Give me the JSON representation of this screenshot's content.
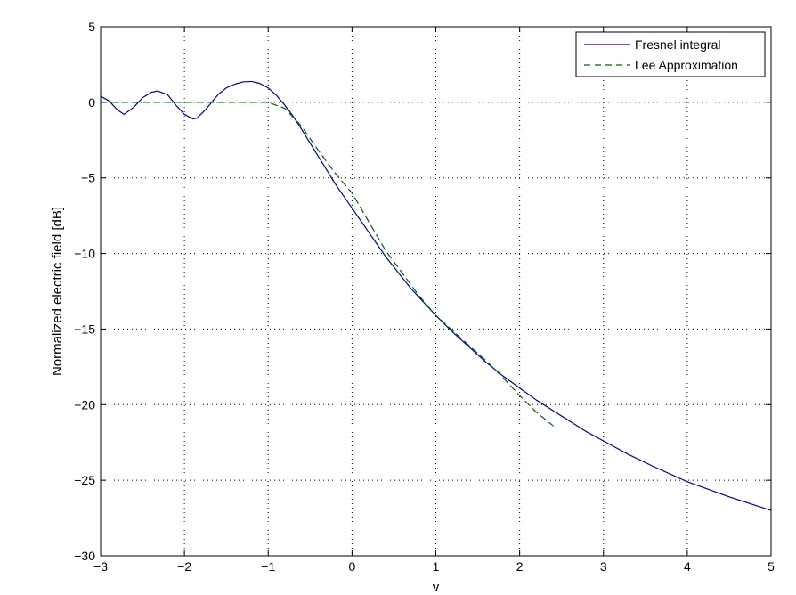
{
  "chart_data": {
    "type": "line",
    "title": "",
    "xlabel": "v",
    "ylabel": "Normalized electric field [dB]",
    "xlim": [
      -3,
      5
    ],
    "ylim": [
      -30,
      5
    ],
    "xticks": [
      -3,
      -2,
      -1,
      0,
      1,
      2,
      3,
      4,
      5
    ],
    "yticks": [
      -30,
      -25,
      -20,
      -15,
      -10,
      -5,
      0,
      5
    ],
    "xtick_labels": [
      "−3",
      "−2",
      "−1",
      "0",
      "1",
      "2",
      "3",
      "4",
      "5"
    ],
    "ytick_labels": [
      "−30",
      "−25",
      "−20",
      "−15",
      "−10",
      "−5",
      "0",
      "5"
    ],
    "grid": true,
    "legend_position": "top-right",
    "series": [
      {
        "name": "Fresnel integral",
        "color": "#0000aa",
        "style": "solid",
        "x": [
          -3.0,
          -2.9,
          -2.8,
          -2.72,
          -2.6,
          -2.5,
          -2.4,
          -2.32,
          -2.2,
          -2.1,
          -2.0,
          -1.9,
          -1.85,
          -1.75,
          -1.6,
          -1.5,
          -1.4,
          -1.3,
          -1.2,
          -1.1,
          -1.0,
          -0.9,
          -0.8,
          -0.7,
          -0.6,
          -0.5,
          -0.4,
          -0.3,
          -0.2,
          -0.1,
          0.0,
          0.1,
          0.2,
          0.3,
          0.4,
          0.5,
          0.6,
          0.7,
          0.8,
          0.9,
          1.0,
          1.2,
          1.4,
          1.6,
          1.8,
          2.0,
          2.2,
          2.4,
          2.6,
          2.8,
          3.0,
          3.3,
          3.6,
          4.0,
          4.5,
          5.0
        ],
        "y": [
          0.4,
          0.1,
          -0.5,
          -0.8,
          -0.3,
          0.3,
          0.65,
          0.75,
          0.5,
          -0.2,
          -0.8,
          -1.1,
          -1.05,
          -0.5,
          0.5,
          0.95,
          1.2,
          1.35,
          1.38,
          1.25,
          0.95,
          0.45,
          -0.2,
          -0.95,
          -1.8,
          -2.7,
          -3.6,
          -4.5,
          -5.4,
          -6.2,
          -7.0,
          -7.8,
          -8.6,
          -9.4,
          -10.2,
          -10.9,
          -11.6,
          -12.3,
          -12.9,
          -13.5,
          -14.1,
          -15.2,
          -16.2,
          -17.2,
          -18.1,
          -18.9,
          -19.7,
          -20.4,
          -21.1,
          -21.8,
          -22.4,
          -23.3,
          -24.1,
          -25.1,
          -26.1,
          -27.0
        ]
      },
      {
        "name": "Lee Approximation",
        "color": "#006400",
        "style": "dashed",
        "x": [
          -3.0,
          -2.5,
          -2.0,
          -1.5,
          -1.0,
          -0.8,
          -0.6,
          -0.4,
          -0.2,
          0.0,
          0.2,
          0.4,
          0.6,
          0.8,
          1.0,
          1.2,
          1.4,
          1.6,
          1.8,
          2.0,
          2.2,
          2.4
        ],
        "y": [
          0.0,
          0.0,
          0.0,
          0.0,
          0.0,
          -0.4,
          -1.6,
          -3.2,
          -4.7,
          -6.0,
          -7.9,
          -9.8,
          -11.3,
          -12.8,
          -14.1,
          -15.1,
          -16.1,
          -17.1,
          -18.2,
          -19.4,
          -20.5,
          -21.4
        ]
      }
    ]
  }
}
